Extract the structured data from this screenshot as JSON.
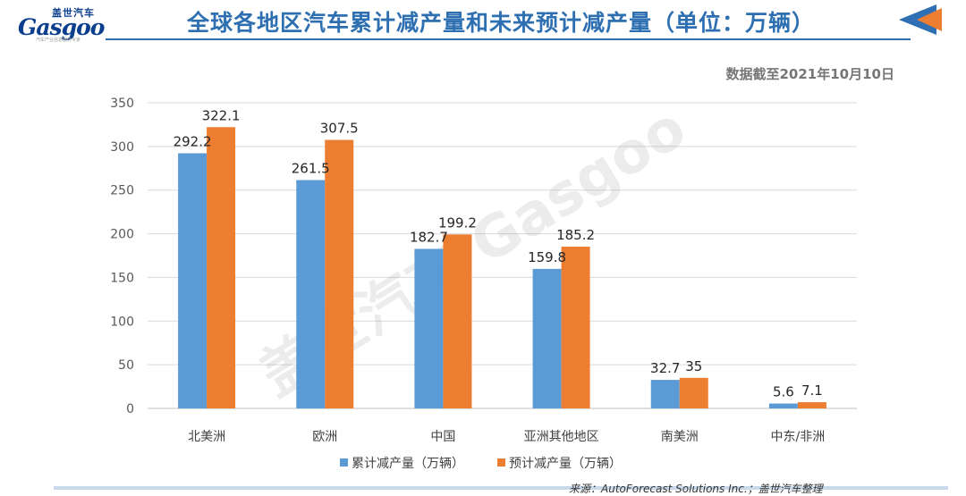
{
  "logo": {
    "cn": "盖世汽车",
    "en": "Gasgoo",
    "sub": "汽车产业信息服务专家"
  },
  "title": "全球各地区汽车累计减产量和未来预计减产量（单位：万辆）",
  "note": "数据截至2021年10月10日",
  "watermark": "盖世汽车 Gasgoo",
  "source": "来源：AutoForecast Solutions Inc.；盖世汽车整理",
  "colors": {
    "series1": "#5b9bd5",
    "series2": "#ed7d31",
    "title": "#2d6fb1"
  },
  "chart_data": {
    "type": "bar",
    "categories": [
      "北美洲",
      "欧洲",
      "中国",
      "亚洲其他地区",
      "南美洲",
      "中东/非洲"
    ],
    "series": [
      {
        "name": "累计减产量（万辆）",
        "values": [
          292.2,
          261.5,
          182.7,
          159.8,
          32.7,
          5.6
        ]
      },
      {
        "name": "预计减产量（万辆）",
        "values": [
          322.1,
          307.5,
          199.2,
          185.2,
          35,
          7.1
        ]
      }
    ],
    "yticks": [
      0,
      50,
      100,
      150,
      200,
      250,
      300,
      350
    ],
    "ylim": [
      0,
      350
    ],
    "grid": true,
    "legend": "bottom"
  }
}
